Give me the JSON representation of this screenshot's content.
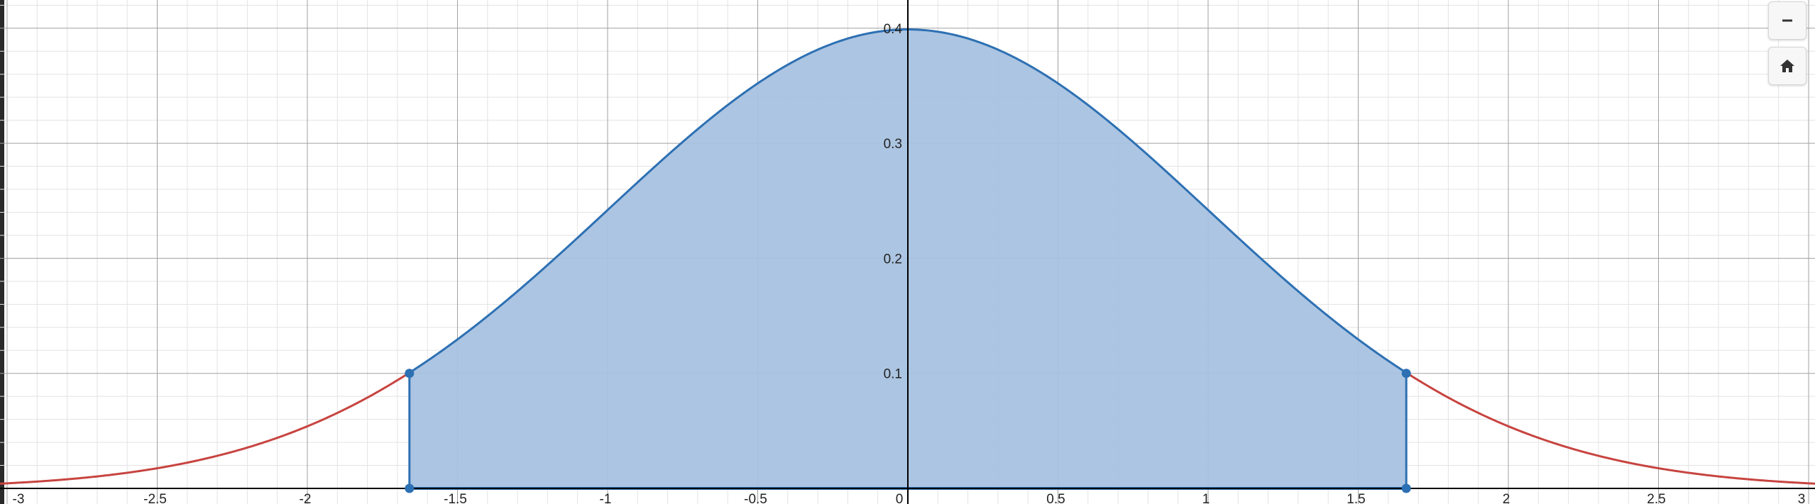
{
  "graph": {
    "title": "",
    "x_tick_labels": [
      "-3",
      "-2.5",
      "-2",
      "-1.5",
      "-1",
      "-0.5",
      "0",
      "0.5",
      "1",
      "1.5",
      "2",
      "2.5",
      "3"
    ],
    "y_tick_labels": [
      "0.1",
      "0.2",
      "0.3",
      "0.4"
    ],
    "colors": {
      "density_curve": "#c74440",
      "shaded_region": "#2d70b3",
      "shaded_fill": "#a8c2e0",
      "axis": "#000000",
      "major_grid": "#a0a0a0",
      "minor_grid": "#e3e3e3"
    }
  },
  "chart_data": {
    "type": "area",
    "function": "standard normal probability density",
    "xlim": [
      -3,
      3
    ],
    "ylim": [
      0,
      0.4
    ],
    "x_ticks": [
      -3,
      -2.5,
      -2,
      -1.5,
      -1,
      -0.5,
      0,
      0.5,
      1,
      1.5,
      2,
      2.5,
      3
    ],
    "y_ticks": [
      0.1,
      0.2,
      0.3,
      0.4
    ],
    "grid": true,
    "shaded_interval": [
      -1.66,
      1.66
    ],
    "marked_points": [
      {
        "x": -1.66,
        "y": 0.1
      },
      {
        "x": 1.66,
        "y": 0.1
      },
      {
        "x": -1.66,
        "y": 0
      },
      {
        "x": 1.66,
        "y": 0
      }
    ],
    "series": [
      {
        "values": [
          [
            -3,
            0.004
          ],
          [
            -2.5,
            0.018
          ],
          [
            -2,
            0.054
          ],
          [
            -1.5,
            0.13
          ],
          [
            -1,
            0.242
          ],
          [
            -0.5,
            0.352
          ],
          [
            0,
            0.399
          ],
          [
            0.5,
            0.352
          ],
          [
            1,
            0.242
          ],
          [
            1.5,
            0.13
          ],
          [
            2,
            0.054
          ],
          [
            2.5,
            0.018
          ],
          [
            3,
            0.004
          ]
        ]
      }
    ]
  },
  "controls": {
    "zoom_out_icon": "minus-icon",
    "home_icon": "home-icon"
  }
}
